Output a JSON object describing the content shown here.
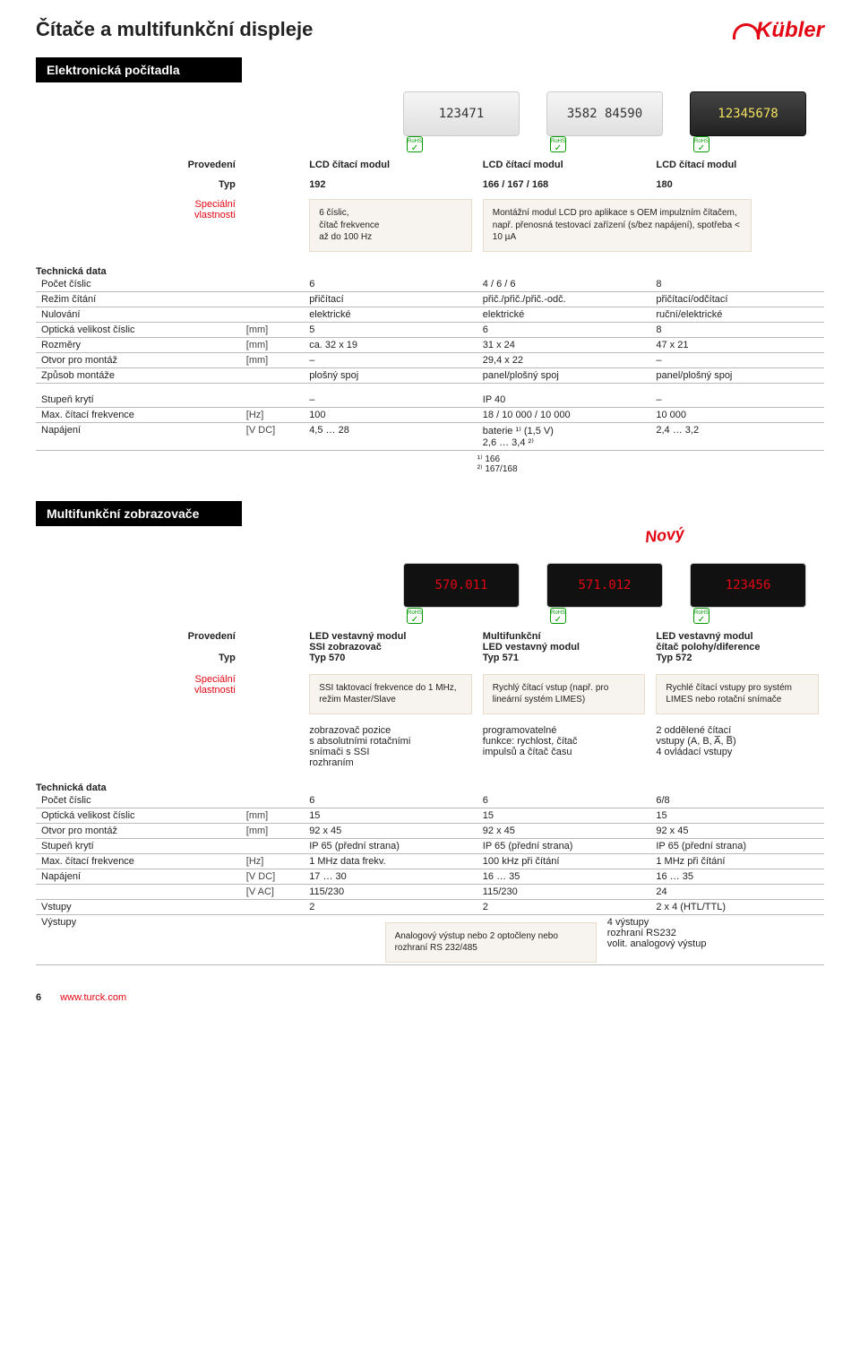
{
  "brand": "Kübler",
  "page_title": "Čítače a multifunkční displeje",
  "footer": {
    "page": "6",
    "url": "www.turck.com"
  },
  "labels": {
    "provedeni": "Provedení",
    "typ": "Typ",
    "special": "Speciální",
    "vlastnosti": "vlastnosti",
    "tech_data": "Technická data"
  },
  "colors": {
    "accent": "#e30613",
    "box_bg": "#f7f3ef",
    "box_border": "#e8dccb",
    "rule": "#bbb"
  },
  "section1": {
    "header": "Elektronická počítadla",
    "provedeni": [
      "LCD čítací modul",
      "LCD čítací modul",
      "LCD čítací modul"
    ],
    "typ": [
      "192",
      "166 / 167 / 168",
      "180"
    ],
    "spec_boxes": [
      "6 číslic,\nčítač frekvence\naž do 100 Hz",
      "Montážní modul LCD pro aplikace s OEM impulzním čítačem, např. přenosná testovací zařízení (s/bez napájení), spotřeba < 10 µA",
      ""
    ],
    "rows": [
      {
        "label": "Počet číslic",
        "unit": "",
        "vals": [
          "6",
          "4 / 6 / 6",
          "8"
        ]
      },
      {
        "label": "Režim čítání",
        "unit": "",
        "vals": [
          "přičítací",
          "přič./přič./přič.-odč.",
          "přičítací/odčítací"
        ]
      },
      {
        "label": "Nulování",
        "unit": "",
        "vals": [
          "elektrické",
          "elektrické",
          "ruční/elektrické"
        ]
      },
      {
        "label": "Optická velikost číslic",
        "unit": "[mm]",
        "vals": [
          "5",
          "6",
          "8"
        ]
      },
      {
        "label": "Rozměry",
        "unit": "[mm]",
        "vals": [
          "ca. 32 x 19",
          "31 x 24",
          "47 x 21"
        ]
      },
      {
        "label": "Otvor pro montáž",
        "unit": "[mm]",
        "vals": [
          "–",
          "29,4 x 22",
          "–"
        ]
      },
      {
        "label": "Způsob montáže",
        "unit": "",
        "vals": [
          "plošný spoj",
          "panel/plošný spoj",
          "panel/plošný spoj"
        ]
      }
    ],
    "rows2": [
      {
        "label": "Stupeň krytí",
        "unit": "",
        "vals": [
          "–",
          "IP 40",
          "–"
        ]
      },
      {
        "label": "Max. čítací frekvence",
        "unit": "[Hz]",
        "vals": [
          "100",
          "18 / 10 000 / 10 000",
          "10 000"
        ]
      },
      {
        "label": "Napájení",
        "unit": "[V DC]",
        "vals": [
          "4,5 … 28",
          "baterie ¹⁾ (1,5 V)\n2,6 … 3,4 ²⁾",
          "2,4 … 3,2"
        ]
      }
    ],
    "footnote": "¹⁾ 166\n²⁾ 167/168"
  },
  "section2": {
    "header": "Multifunkční zobrazovače",
    "novy": "Nový",
    "provedeni": [
      "LED vestavný modul\nSSI zobrazovač",
      "Multifunkční\nLED vestavný modul",
      "LED vestavný modul\nčítač polohy/diference"
    ],
    "typ": [
      "Typ 570",
      "Typ 571",
      "Typ 572"
    ],
    "spec_boxes": [
      "SSI taktovací frekvence do 1 MHz, režim Master/Slave",
      "Rychlý čítací vstup (např. pro lineární systém LIMES)",
      "Rychlé čítací vstupy pro systém LIMES nebo rotační snímače"
    ],
    "sub_row": [
      "zobrazovač pozice\ns absolutními rotačními\nsnímači s SSI\nrozhraním",
      "programovatelné\nfunkce: rychlost, čítač\nimpulsů a čítač času",
      "2 oddělené čítací\nvstupy (A, B, A̅, B̅)\n4 ovládací vstupy"
    ],
    "rows": [
      {
        "label": "Počet číslic",
        "unit": "",
        "vals": [
          "6",
          "6",
          "6/8"
        ]
      },
      {
        "label": "Optická velikost číslic",
        "unit": "[mm]",
        "vals": [
          "15",
          "15",
          "15"
        ]
      },
      {
        "label": "Otvor pro montáž",
        "unit": "[mm]",
        "vals": [
          "92 x 45",
          "92 x 45",
          "92 x 45"
        ]
      },
      {
        "label": "Stupeň krytí",
        "unit": "",
        "vals": [
          "IP 65 (přední strana)",
          "IP 65 (přední strana)",
          "IP 65 (přední strana)"
        ]
      },
      {
        "label": "Max. čítací frekvence",
        "unit": "[Hz]",
        "vals": [
          "1 MHz data frekv.",
          "100 kHz při čítání",
          "1 MHz při čítání"
        ]
      },
      {
        "label": "Napájení",
        "unit": "[V DC]",
        "vals": [
          "17 … 30",
          "16 … 35",
          "16 … 35"
        ]
      },
      {
        "label": "",
        "unit": "[V AC]",
        "vals": [
          "115/230",
          "115/230",
          "24"
        ]
      },
      {
        "label": "Vstupy",
        "unit": "",
        "vals": [
          "2",
          "2",
          "2 x 4 (HTL/TTL)"
        ]
      }
    ],
    "vystupy": {
      "label": "Výstupy",
      "merged": "Analogový výstup nebo 2 optočleny nebo rozhraní RS 232/485",
      "col3": "4 výstupy\nrozhraní RS232\nvolit. analogový výstup"
    }
  }
}
